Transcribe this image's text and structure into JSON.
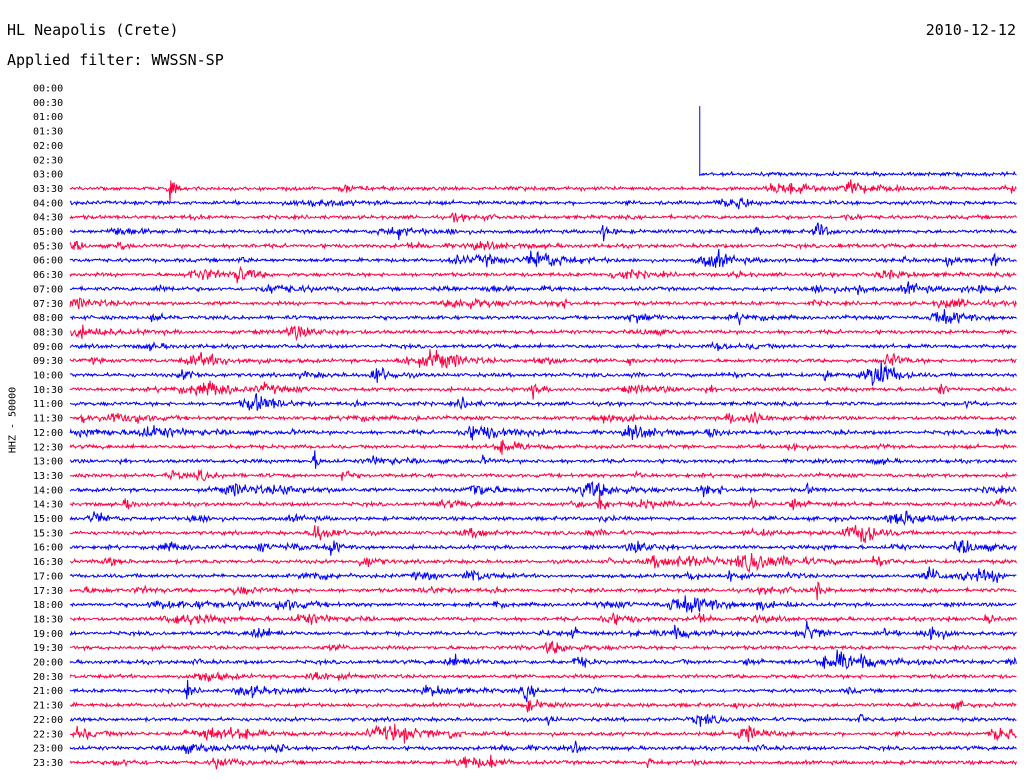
{
  "header": {
    "station": "HL Neapolis (Crete)",
    "date": "2010-12-12",
    "filter": "Applied filter: WWSSN-SP"
  },
  "chart_data": {
    "type": "line",
    "title": "HL Neapolis (Crete)",
    "subtitle": "Applied filter: WWSSN-SP",
    "ylabel": "HHZ - 50000",
    "xlabel": "",
    "row_labels": [
      "00:00",
      "00:30",
      "01:00",
      "01:30",
      "02:00",
      "02:30",
      "03:00",
      "03:30",
      "04:00",
      "04:30",
      "05:00",
      "05:30",
      "06:00",
      "06:30",
      "07:00",
      "07:30",
      "08:00",
      "08:30",
      "09:00",
      "09:30",
      "10:00",
      "10:30",
      "11:00",
      "11:30",
      "12:00",
      "12:30",
      "13:00",
      "13:30",
      "14:00",
      "14:30",
      "15:00",
      "15:30",
      "16:00",
      "16:30",
      "17:00",
      "17:30",
      "18:00",
      "18:30",
      "19:00",
      "19:30",
      "20:00",
      "20:30",
      "21:00",
      "21:30",
      "22:00",
      "22:30",
      "23:00",
      "23:30"
    ],
    "row_minutes": 30,
    "series_colors": [
      "#0000ff",
      "#ff0040"
    ],
    "data_start": {
      "row": 6,
      "fraction": 0.665
    },
    "grid": false,
    "legend": "none"
  }
}
